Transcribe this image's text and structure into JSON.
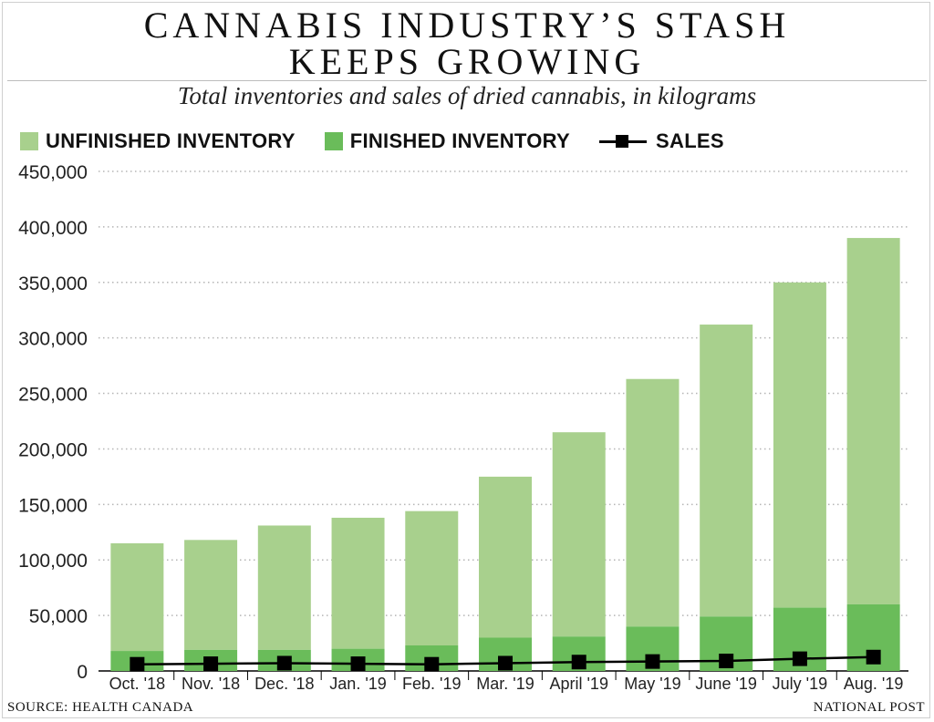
{
  "header": {
    "title_line1": "CANNABIS INDUSTRY’S STASH",
    "title_line2": "KEEPS GROWING",
    "subtitle": "Total inventories and sales of dried cannabis, in kilograms"
  },
  "legend": {
    "unfinished": "UNFINISHED INVENTORY",
    "finished": "FINISHED INVENTORY",
    "sales": "SALES"
  },
  "colors": {
    "unfinished": "#a8d08d",
    "finished": "#6abc5a",
    "sales": "#000000",
    "grid": "#b5b5b5"
  },
  "footer": {
    "source": "SOURCE: HEALTH CANADA",
    "brand": "NATIONAL POST"
  },
  "chart_data": {
    "type": "bar",
    "stacked": true,
    "title": "CANNABIS INDUSTRY’S STASH KEEPS GROWING",
    "subtitle": "Total inventories and sales of dried cannabis, in kilograms",
    "xlabel": "",
    "ylabel": "",
    "categories": [
      "Oct. '18",
      "Nov. '18",
      "Dec. '18",
      "Jan. '19",
      "Feb. '19",
      "Mar. '19",
      "April '19",
      "May '19",
      "June '19",
      "July '19",
      "Aug. '19"
    ],
    "ylim": [
      0,
      450000
    ],
    "yticks": [
      0,
      50000,
      100000,
      150000,
      200000,
      250000,
      300000,
      350000,
      400000,
      450000
    ],
    "ytick_labels": [
      "0",
      "50,000",
      "100,000",
      "150,000",
      "200,000",
      "250,000",
      "300,000",
      "350,000",
      "400,000",
      "450,000"
    ],
    "grid": "horizontal dotted",
    "legend_position": "top-left",
    "series": [
      {
        "name": "FINISHED INVENTORY",
        "kind": "bar",
        "values": [
          18000,
          19000,
          19000,
          20000,
          23000,
          30000,
          31000,
          40000,
          49000,
          57000,
          60000
        ]
      },
      {
        "name": "UNFINISHED INVENTORY",
        "kind": "bar",
        "values": [
          97000,
          99000,
          112000,
          118000,
          121000,
          145000,
          184000,
          223000,
          263000,
          293000,
          330000
        ]
      },
      {
        "name": "SALES",
        "kind": "line",
        "values": [
          6000,
          6500,
          7000,
          6500,
          6000,
          7000,
          8000,
          8500,
          9000,
          11000,
          12500
        ]
      }
    ]
  }
}
